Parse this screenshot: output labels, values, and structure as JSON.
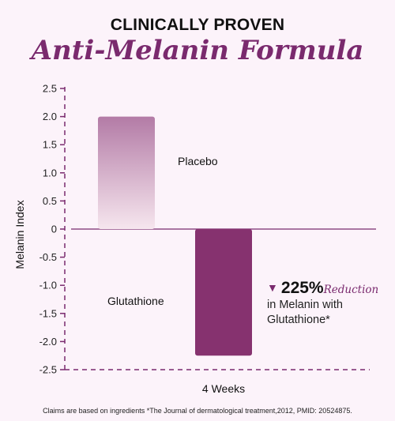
{
  "header": {
    "line1": "CLINICALLY PROVEN",
    "line2": "Anti-Melanin Formula"
  },
  "chart_data": {
    "type": "bar",
    "categories": [
      "Placebo",
      "Glutathione"
    ],
    "values": [
      2.0,
      -2.25
    ],
    "xlabel": "4 Weeks",
    "ylabel": "Melanin Index",
    "ylim": [
      -2.5,
      2.5
    ],
    "yticks": [
      "2.5",
      "2.0",
      "1.5",
      "1.0",
      "0.5",
      "0",
      "-0.5",
      "-1.0",
      "-1.5",
      "-2.0",
      "-2.5"
    ],
    "bar_labels": [
      "Placebo",
      "Glutathione"
    ],
    "colors": {
      "placebo_top": "#b37ba6",
      "placebo_bottom": "#f6e6ee",
      "glutathione": "#86326f",
      "axis": "#7a2a6e"
    }
  },
  "callout": {
    "percent": "225%",
    "reduction": "Reduction",
    "line2": "in Melanin with",
    "line3": "Glutathione*"
  },
  "footnote": "Claims are based on ingredients *The Journal of dermatological treatment,2012, PMID: 20524875."
}
